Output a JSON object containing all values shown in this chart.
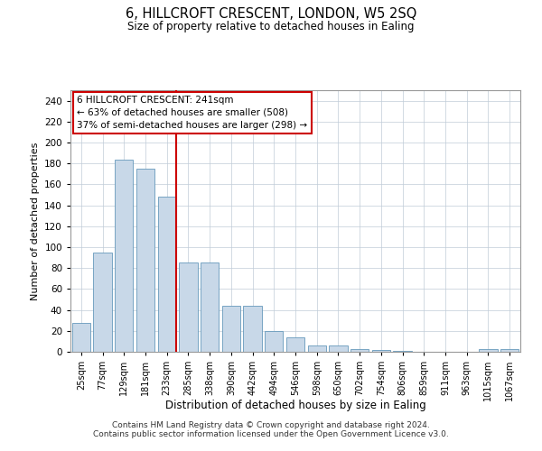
{
  "title": "6, HILLCROFT CRESCENT, LONDON, W5 2SQ",
  "subtitle": "Size of property relative to detached houses in Ealing",
  "xlabel": "Distribution of detached houses by size in Ealing",
  "ylabel": "Number of detached properties",
  "annotation_line1": "6 HILLCROFT CRESCENT: 241sqm",
  "annotation_line2": "← 63% of detached houses are smaller (508)",
  "annotation_line3": "37% of semi-detached houses are larger (298) →",
  "bins": [
    "25sqm",
    "77sqm",
    "129sqm",
    "181sqm",
    "233sqm",
    "285sqm",
    "338sqm",
    "390sqm",
    "442sqm",
    "494sqm",
    "546sqm",
    "598sqm",
    "650sqm",
    "702sqm",
    "754sqm",
    "806sqm",
    "859sqm",
    "911sqm",
    "963sqm",
    "1015sqm",
    "1067sqm"
  ],
  "bar_heights": [
    28,
    95,
    184,
    175,
    148,
    85,
    85,
    44,
    44,
    20,
    14,
    6,
    6,
    3,
    2,
    1,
    0,
    0,
    0,
    3,
    3
  ],
  "bar_color": "#c8d8e8",
  "bar_edge_color": "#6699bb",
  "vline_color": "#cc0000",
  "vline_x": 4,
  "annotation_box_edgecolor": "#cc0000",
  "background_color": "#ffffff",
  "grid_color": "#c0ccd8",
  "ylim_max": 250,
  "yticks": [
    0,
    20,
    40,
    60,
    80,
    100,
    120,
    140,
    160,
    180,
    200,
    220,
    240
  ],
  "footer1": "Contains HM Land Registry data © Crown copyright and database right 2024.",
  "footer2": "Contains public sector information licensed under the Open Government Licence v3.0."
}
